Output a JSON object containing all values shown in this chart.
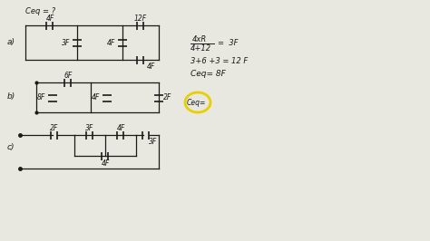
{
  "bg_color": "#e8e8e0",
  "paper_color": "#f0f0ea",
  "title": "Ceq = ?",
  "label_a": "a)",
  "label_b": "b)",
  "label_c": "c)",
  "eq_frac_top": "4xR",
  "eq_frac_bot": "4+12",
  "eq_frac_result": "= 3F",
  "eq2": "3+6 +3 = 12 F",
  "eq3": "Ceq= 8F",
  "ceq_b_label": "Ceq=",
  "circ_color": "#e8d000",
  "line_color": "#1a1a1a",
  "text_color": "#1a1a1a"
}
